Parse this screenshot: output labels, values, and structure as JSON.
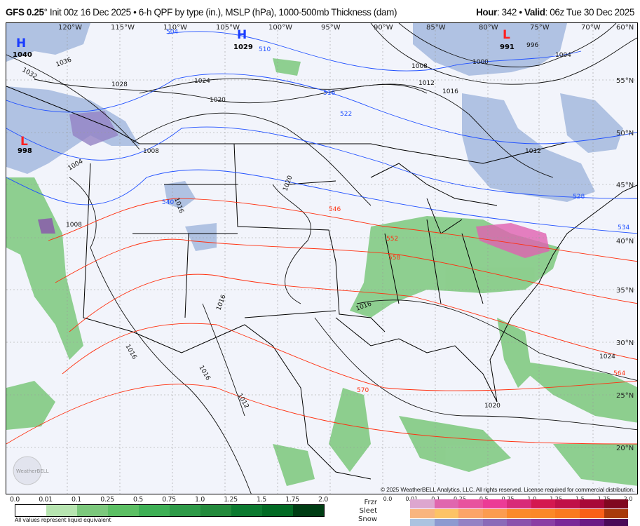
{
  "header": {
    "model": "GFS 0.25",
    "degree": "°",
    "init": " Init 00z 16 Dec 2025 • 6-h QPF by type (in.), MSLP (hPa), 1000-500mb Thickness (dam)",
    "hour_label": "Hour",
    "hour": ": 342 • ",
    "valid_label": "Valid",
    "valid": ": 06z Tue 30 Dec 2025"
  },
  "map": {
    "lon_labels": [
      "120°W",
      "115°W",
      "110°W",
      "105°W",
      "100°W",
      "95°W",
      "90°W",
      "85°W",
      "80°W",
      "75°W",
      "70°W",
      "60°N"
    ],
    "lat_labels": [
      "55°N",
      "50°N",
      "45°N",
      "40°N",
      "35°N",
      "30°N",
      "25°N",
      "20°N"
    ],
    "pressure_centers": [
      {
        "type": "H",
        "value": "1040"
      },
      {
        "type": "H",
        "value": "1029"
      },
      {
        "type": "L",
        "value": "991"
      },
      {
        "type": "L",
        "value": "998"
      }
    ],
    "isobar_labels": [
      "1036",
      "1032",
      "1028",
      "1024",
      "1020",
      "1016",
      "1012",
      "1008",
      "1004",
      "1000",
      "996",
      "1008",
      "1004",
      "1012",
      "1016",
      "1020",
      "1016",
      "1016",
      "1012",
      "1016",
      "1020",
      "1024",
      "1008",
      "1016"
    ],
    "thickness_labels": [
      "504",
      "510",
      "516",
      "522",
      "528",
      "534",
      "540",
      "546",
      "552",
      "558",
      "564",
      "570"
    ],
    "colors": {
      "high": "#1a3cff",
      "low": "#ff2020",
      "isobar": "#111111",
      "thickness_cold": "#2050ff",
      "thickness_warm": "#ff3010",
      "rain": "#7cc87c",
      "snow": "#a9bde0",
      "mix": "#e060b0"
    },
    "logo": "WeatherBELL"
  },
  "copyright": "© 2025 WeatherBELL Analytics, LLC. All rights reserved. License required for commercial distribution.",
  "rain_scale": {
    "labels": [
      "0.0",
      "0.01",
      "0.1",
      "0.25",
      "0.5",
      "0.75",
      "1.0",
      "1.25",
      "1.5",
      "1.75",
      "2.0"
    ],
    "colors": [
      "#ffffff",
      "#b7e4b0",
      "#7cc87c",
      "#5cbf64",
      "#3eaf55",
      "#2e9a48",
      "#238a3c",
      "#0c7a30",
      "#026a24",
      "#003d14"
    ],
    "note": "All values represent liquid equivalent"
  },
  "ptype_scale": {
    "labels": [
      "0.0",
      "0.01",
      "0.1",
      "0.25",
      "0.5",
      "0.75",
      "1.0",
      "1.25",
      "1.5",
      "1.75",
      "2.0"
    ],
    "rows": [
      {
        "name": "Frzr",
        "colors": [
          "#dda6cf",
          "#e066ae",
          "#e8529e",
          "#ec3b96",
          "#d82a78",
          "#d41850",
          "#c01048",
          "#a80838",
          "#800820"
        ]
      },
      {
        "name": "Sleet",
        "colors": [
          "#f9b57e",
          "#fcc366",
          "#fba468",
          "#fb9c50",
          "#fb8a2a",
          "#fb8828",
          "#f97a20",
          "#f96018",
          "#a83a0a"
        ]
      },
      {
        "name": "Snow",
        "colors": [
          "#abc3e0",
          "#8c9ad0",
          "#9382c4",
          "#8a6ab8",
          "#8a52ac",
          "#8a3ea4",
          "#7a2898",
          "#6a1a84",
          "#4a0a58"
        ]
      }
    ]
  }
}
